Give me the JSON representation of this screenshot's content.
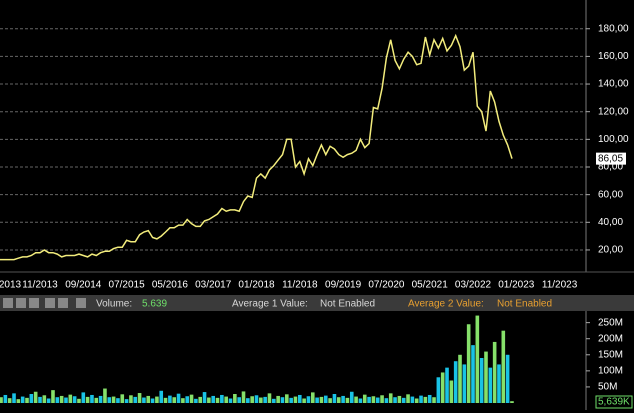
{
  "header": {
    "volume_label": "Volume:",
    "volume_value": "5.639",
    "avg1_label": "Average 1 Value:",
    "avg1_value": "Not Enabled",
    "avg2_label": "Average 2 Value:",
    "avg2_value": "Not Enabled"
  },
  "chart_data": [
    {
      "type": "line",
      "color": "#f2ec7c",
      "grid": true,
      "categories": [
        "2013",
        null,
        null,
        null,
        null,
        null,
        null,
        null,
        null,
        null,
        "11/2013",
        null,
        null,
        null,
        null,
        null,
        null,
        null,
        null,
        null,
        "09/2014",
        null,
        null,
        null,
        null,
        null,
        null,
        null,
        null,
        null,
        "07/2015",
        null,
        null,
        null,
        null,
        null,
        null,
        null,
        null,
        null,
        "05/2016",
        null,
        null,
        null,
        null,
        null,
        null,
        null,
        null,
        null,
        "03/2017",
        null,
        null,
        null,
        null,
        null,
        null,
        null,
        null,
        null,
        "01/2018",
        null,
        null,
        null,
        null,
        null,
        null,
        null,
        null,
        null,
        "11/2018",
        null,
        null,
        null,
        null,
        null,
        null,
        null,
        null,
        null,
        "09/2019",
        null,
        null,
        null,
        null,
        null,
        null,
        null,
        null,
        null,
        "07/2020",
        null,
        null,
        null,
        null,
        null,
        null,
        null,
        null,
        null,
        "05/2021",
        null,
        null,
        null,
        null,
        null,
        null,
        null,
        null,
        null,
        "03/2022",
        null,
        null,
        null,
        null,
        null,
        null,
        null,
        null,
        null,
        "01/2023",
        null,
        null,
        null,
        null,
        null,
        null,
        null,
        null,
        null,
        "11/2023",
        null
      ],
      "values": [
        13,
        13,
        13,
        13,
        13,
        14,
        15,
        15,
        16,
        18,
        18,
        20,
        18,
        18,
        17,
        15,
        16,
        16,
        16,
        17,
        16,
        15,
        17,
        16,
        18,
        19,
        19,
        21,
        22,
        22,
        27,
        26,
        26,
        31,
        33,
        34,
        29,
        28,
        30,
        33,
        36,
        36,
        38,
        38,
        42,
        39,
        37,
        37,
        41,
        42,
        44,
        46,
        50,
        48,
        49,
        49,
        48,
        55,
        59,
        58,
        72,
        75,
        72,
        78,
        81,
        85,
        89,
        100,
        100,
        80,
        84,
        75,
        86,
        81,
        89,
        96,
        89,
        95,
        93,
        89,
        87,
        89,
        90,
        92,
        100,
        94,
        97,
        123,
        122,
        137,
        159,
        172,
        157,
        151,
        158,
        163,
        160,
        154,
        155,
        174,
        161,
        172,
        166,
        173,
        164,
        168,
        175,
        167,
        150,
        153,
        163,
        124,
        120,
        106,
        135,
        127,
        113,
        103,
        96,
        86.05,
        null,
        null,
        null,
        null,
        null,
        null,
        null,
        null,
        null,
        null,
        null,
        null
      ],
      "last_label": "86,05",
      "ylim": [
        5.5,
        195
      ],
      "yticks": [
        {
          "value": 20,
          "label": "20,00"
        },
        {
          "value": 40,
          "label": "40,00"
        },
        {
          "value": 60,
          "label": "60,00"
        },
        {
          "value": 80,
          "label": "80,00"
        },
        {
          "value": 100,
          "label": "100,00"
        },
        {
          "value": 120,
          "label": "120,00"
        },
        {
          "value": 140,
          "label": "140,00"
        },
        {
          "value": 160,
          "label": "160,00"
        },
        {
          "value": 180,
          "label": "180,00"
        }
      ]
    },
    {
      "type": "bar",
      "colors": [
        "#19c3e6",
        "#86e06a"
      ],
      "values": [
        22,
        18,
        25,
        15,
        30,
        12,
        20,
        16,
        28,
        35,
        19,
        24,
        14,
        40,
        18,
        22,
        17,
        26,
        21,
        13,
        33,
        19,
        25,
        16,
        22,
        45,
        18,
        20,
        15,
        27,
        12,
        24,
        19,
        31,
        17,
        22,
        14,
        20,
        38,
        16,
        23,
        18,
        29,
        15,
        21,
        26,
        13,
        19,
        34,
        17,
        22,
        16,
        25,
        20,
        14,
        28,
        18,
        36,
        15,
        21,
        24,
        17,
        19,
        30,
        13,
        22,
        18,
        27,
        16,
        20,
        25,
        14,
        21,
        33,
        17,
        19,
        23,
        15,
        28,
        18,
        22,
        16,
        35,
        20,
        14,
        26,
        19,
        21,
        17,
        24,
        15,
        30,
        18,
        22,
        16,
        27,
        20,
        14,
        23,
        19,
        25,
        18,
        80,
        95,
        110,
        70,
        130,
        150,
        120,
        245,
        180,
        272,
        140,
        160,
        110,
        190,
        120,
        225,
        150,
        5.639,
        null,
        null,
        null,
        null,
        null,
        null,
        null,
        null,
        null,
        null,
        null,
        null
      ],
      "last_label": "5,639K",
      "ylim": [
        0,
        280
      ],
      "yticks": [
        {
          "value": 50,
          "label": "50M"
        },
        {
          "value": 100,
          "label": "100M"
        },
        {
          "value": 150,
          "label": "150M"
        },
        {
          "value": 200,
          "label": "200M"
        },
        {
          "value": 250,
          "label": "250M"
        }
      ]
    }
  ]
}
